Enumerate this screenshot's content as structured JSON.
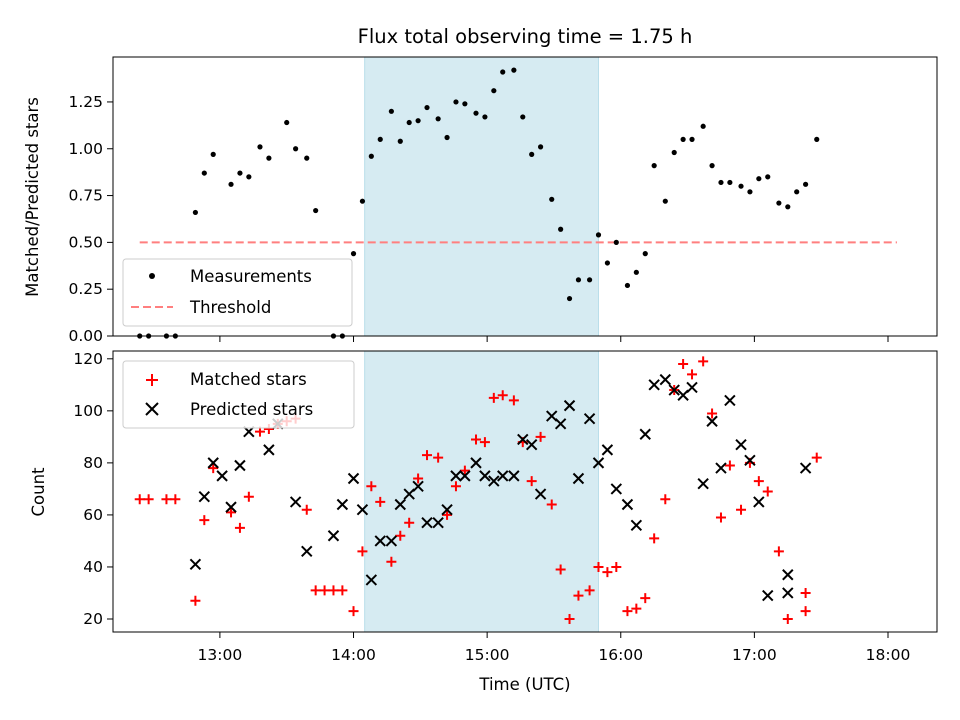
{
  "chart_data": [
    {
      "type": "scatter",
      "title": "Flux total observing time = 1.75 h",
      "xlabel": "",
      "ylabel": "Matched/Predicted stars",
      "xlim": [
        "12:12",
        "18:22"
      ],
      "ylim": [
        0,
        1.49
      ],
      "yticks": [
        "0.00",
        "0.25",
        "0.50",
        "0.75",
        "1.00",
        "1.25"
      ],
      "ytick_values": [
        0,
        0.25,
        0.5,
        0.75,
        1.0,
        1.25
      ],
      "xtick_values": [
        "13:00",
        "14:00",
        "15:00",
        "16:00",
        "17:00",
        "18:00"
      ],
      "highlight_span": {
        "x_start": "14:05",
        "x_end": "15:50",
        "color": "#add8e6"
      },
      "threshold": {
        "name": "Threshold",
        "value": 0.5,
        "x_start": "12:24",
        "x_end": "18:04",
        "color": "#ff7f7f"
      },
      "legend": {
        "position": "lower-left",
        "entries": [
          "Measurements",
          "Threshold"
        ]
      },
      "series": [
        {
          "name": "Measurements",
          "color": "#000000",
          "marker": "dot",
          "points": [
            [
              "12:24",
              0.0
            ],
            [
              "12:28",
              0.0
            ],
            [
              "12:36",
              0.0
            ],
            [
              "12:40",
              0.0
            ],
            [
              "12:49",
              0.66
            ],
            [
              "12:53",
              0.87
            ],
            [
              "12:57",
              0.97
            ],
            [
              "13:05",
              0.81
            ],
            [
              "13:09",
              0.87
            ],
            [
              "13:13",
              0.85
            ],
            [
              "13:18",
              1.01
            ],
            [
              "13:22",
              0.95
            ],
            [
              "13:30",
              1.14
            ],
            [
              "13:34",
              1.0
            ],
            [
              "13:39",
              0.95
            ],
            [
              "13:43",
              0.67
            ],
            [
              "13:51",
              0.0
            ],
            [
              "13:55",
              0.0
            ],
            [
              "14:00",
              0.44
            ],
            [
              "14:04",
              0.72
            ],
            [
              "14:08",
              0.96
            ],
            [
              "14:12",
              1.05
            ],
            [
              "14:17",
              1.2
            ],
            [
              "14:21",
              1.04
            ],
            [
              "14:25",
              1.14
            ],
            [
              "14:29",
              1.15
            ],
            [
              "14:33",
              1.22
            ],
            [
              "14:38",
              1.16
            ],
            [
              "14:42",
              1.06
            ],
            [
              "14:46",
              1.25
            ],
            [
              "14:50",
              1.24
            ],
            [
              "14:55",
              1.19
            ],
            [
              "14:59",
              1.17
            ],
            [
              "15:03",
              1.31
            ],
            [
              "15:07",
              1.41
            ],
            [
              "15:12",
              1.42
            ],
            [
              "15:16",
              1.17
            ],
            [
              "15:20",
              0.97
            ],
            [
              "15:24",
              1.01
            ],
            [
              "15:29",
              0.73
            ],
            [
              "15:33",
              0.57
            ],
            [
              "15:37",
              0.2
            ],
            [
              "15:41",
              0.3
            ],
            [
              "15:46",
              0.3
            ],
            [
              "15:50",
              0.54
            ],
            [
              "15:54",
              0.39
            ],
            [
              "15:58",
              0.5
            ],
            [
              "16:03",
              0.27
            ],
            [
              "16:07",
              0.34
            ],
            [
              "16:11",
              0.44
            ],
            [
              "16:15",
              0.91
            ],
            [
              "16:20",
              0.72
            ],
            [
              "16:24",
              0.98
            ],
            [
              "16:28",
              1.05
            ],
            [
              "16:32",
              1.05
            ],
            [
              "16:37",
              1.12
            ],
            [
              "16:41",
              0.91
            ],
            [
              "16:45",
              0.82
            ],
            [
              "16:49",
              0.82
            ],
            [
              "16:54",
              0.8
            ],
            [
              "16:58",
              0.77
            ],
            [
              "17:02",
              0.84
            ],
            [
              "17:06",
              0.85
            ],
            [
              "17:11",
              0.71
            ],
            [
              "17:15",
              0.69
            ],
            [
              "17:19",
              0.77
            ],
            [
              "17:23",
              0.81
            ],
            [
              "17:28",
              1.05
            ]
          ]
        }
      ]
    },
    {
      "type": "scatter",
      "title": "",
      "xlabel": "Time (UTC)",
      "ylabel": "Count",
      "xlim": [
        "12:12",
        "18:22"
      ],
      "ylim": [
        15,
        123
      ],
      "yticks": [
        "20",
        "40",
        "60",
        "80",
        "100",
        "120"
      ],
      "ytick_values": [
        20,
        40,
        60,
        80,
        100,
        120
      ],
      "xticks": [
        "13:00",
        "14:00",
        "15:00",
        "16:00",
        "17:00",
        "18:00"
      ],
      "xtick_values": [
        "13:00",
        "14:00",
        "15:00",
        "16:00",
        "17:00",
        "18:00"
      ],
      "highlight_span": {
        "x_start": "14:05",
        "x_end": "15:50",
        "color": "#add8e6"
      },
      "legend": {
        "position": "top-left",
        "entries": [
          "Matched stars",
          "Predicted stars"
        ]
      },
      "series": [
        {
          "name": "Matched stars",
          "color": "#ff0000",
          "marker": "plus",
          "points": [
            [
              "12:24",
              66
            ],
            [
              "12:28",
              66
            ],
            [
              "12:36",
              66
            ],
            [
              "12:40",
              66
            ],
            [
              "12:49",
              27
            ],
            [
              "12:53",
              58
            ],
            [
              "12:57",
              78
            ],
            [
              "13:05",
              61
            ],
            [
              "13:09",
              55
            ],
            [
              "13:13",
              67
            ],
            [
              "13:18",
              92
            ],
            [
              "13:22",
              93
            ],
            [
              "13:26",
              95
            ],
            [
              "13:30",
              96
            ],
            [
              "13:34",
              97
            ],
            [
              "13:39",
              62
            ],
            [
              "13:43",
              31
            ],
            [
              "13:47",
              31
            ],
            [
              "13:51",
              31
            ],
            [
              "13:55",
              31
            ],
            [
              "14:00",
              23
            ],
            [
              "14:04",
              46
            ],
            [
              "14:08",
              71
            ],
            [
              "14:12",
              65
            ],
            [
              "14:17",
              42
            ],
            [
              "14:21",
              52
            ],
            [
              "14:25",
              57
            ],
            [
              "14:29",
              74
            ],
            [
              "14:33",
              83
            ],
            [
              "14:38",
              82
            ],
            [
              "14:42",
              60
            ],
            [
              "14:46",
              71
            ],
            [
              "14:50",
              77
            ],
            [
              "14:55",
              89
            ],
            [
              "14:59",
              88
            ],
            [
              "15:03",
              105
            ],
            [
              "15:07",
              106
            ],
            [
              "15:12",
              104
            ],
            [
              "15:16",
              88
            ],
            [
              "15:20",
              73
            ],
            [
              "15:24",
              90
            ],
            [
              "15:29",
              64
            ],
            [
              "15:33",
              39
            ],
            [
              "15:37",
              20
            ],
            [
              "15:41",
              29
            ],
            [
              "15:46",
              31
            ],
            [
              "15:50",
              40
            ],
            [
              "15:54",
              38
            ],
            [
              "15:58",
              40
            ],
            [
              "16:03",
              23
            ],
            [
              "16:07",
              24
            ],
            [
              "16:11",
              28
            ],
            [
              "16:15",
              51
            ],
            [
              "16:20",
              66
            ],
            [
              "16:24",
              108
            ],
            [
              "16:28",
              118
            ],
            [
              "16:32",
              114
            ],
            [
              "16:37",
              119
            ],
            [
              "16:41",
              99
            ],
            [
              "16:45",
              59
            ],
            [
              "16:49",
              79
            ],
            [
              "16:54",
              62
            ],
            [
              "16:58",
              80
            ],
            [
              "17:02",
              73
            ],
            [
              "17:06",
              69
            ],
            [
              "17:11",
              46
            ],
            [
              "17:15",
              20
            ],
            [
              "17:23",
              23
            ],
            [
              "17:23",
              30
            ],
            [
              "17:28",
              82
            ]
          ]
        },
        {
          "name": "Predicted stars",
          "color": "#000000",
          "marker": "x",
          "points": [
            [
              "12:49",
              41
            ],
            [
              "12:53",
              67
            ],
            [
              "12:57",
              80
            ],
            [
              "13:01",
              75
            ],
            [
              "13:05",
              63
            ],
            [
              "13:09",
              79
            ],
            [
              "13:13",
              92
            ],
            [
              "13:22",
              85
            ],
            [
              "13:26",
              95
            ],
            [
              "13:34",
              65
            ],
            [
              "13:39",
              46
            ],
            [
              "13:51",
              52
            ],
            [
              "13:55",
              64
            ],
            [
              "14:00",
              74
            ],
            [
              "14:04",
              62
            ],
            [
              "14:08",
              35
            ],
            [
              "14:12",
              50
            ],
            [
              "14:17",
              50
            ],
            [
              "14:21",
              64
            ],
            [
              "14:25",
              68
            ],
            [
              "14:29",
              71
            ],
            [
              "14:33",
              57
            ],
            [
              "14:38",
              57
            ],
            [
              "14:42",
              62
            ],
            [
              "14:46",
              75
            ],
            [
              "14:50",
              75
            ],
            [
              "14:55",
              80
            ],
            [
              "14:59",
              75
            ],
            [
              "15:03",
              73
            ],
            [
              "15:07",
              75
            ],
            [
              "15:12",
              75
            ],
            [
              "15:16",
              89
            ],
            [
              "15:20",
              87
            ],
            [
              "15:24",
              68
            ],
            [
              "15:29",
              98
            ],
            [
              "15:33",
              95
            ],
            [
              "15:37",
              102
            ],
            [
              "15:41",
              74
            ],
            [
              "15:46",
              97
            ],
            [
              "15:50",
              80
            ],
            [
              "15:54",
              85
            ],
            [
              "15:58",
              70
            ],
            [
              "16:03",
              64
            ],
            [
              "16:07",
              56
            ],
            [
              "16:11",
              91
            ],
            [
              "16:15",
              110
            ],
            [
              "16:20",
              112
            ],
            [
              "16:24",
              108
            ],
            [
              "16:28",
              106
            ],
            [
              "16:32",
              109
            ],
            [
              "16:37",
              72
            ],
            [
              "16:41",
              96
            ],
            [
              "16:45",
              78
            ],
            [
              "16:49",
              104
            ],
            [
              "16:54",
              87
            ],
            [
              "16:58",
              81
            ],
            [
              "17:02",
              65
            ],
            [
              "17:06",
              29
            ],
            [
              "17:15",
              37
            ],
            [
              "17:15",
              30
            ],
            [
              "17:23",
              78
            ]
          ]
        }
      ]
    }
  ]
}
